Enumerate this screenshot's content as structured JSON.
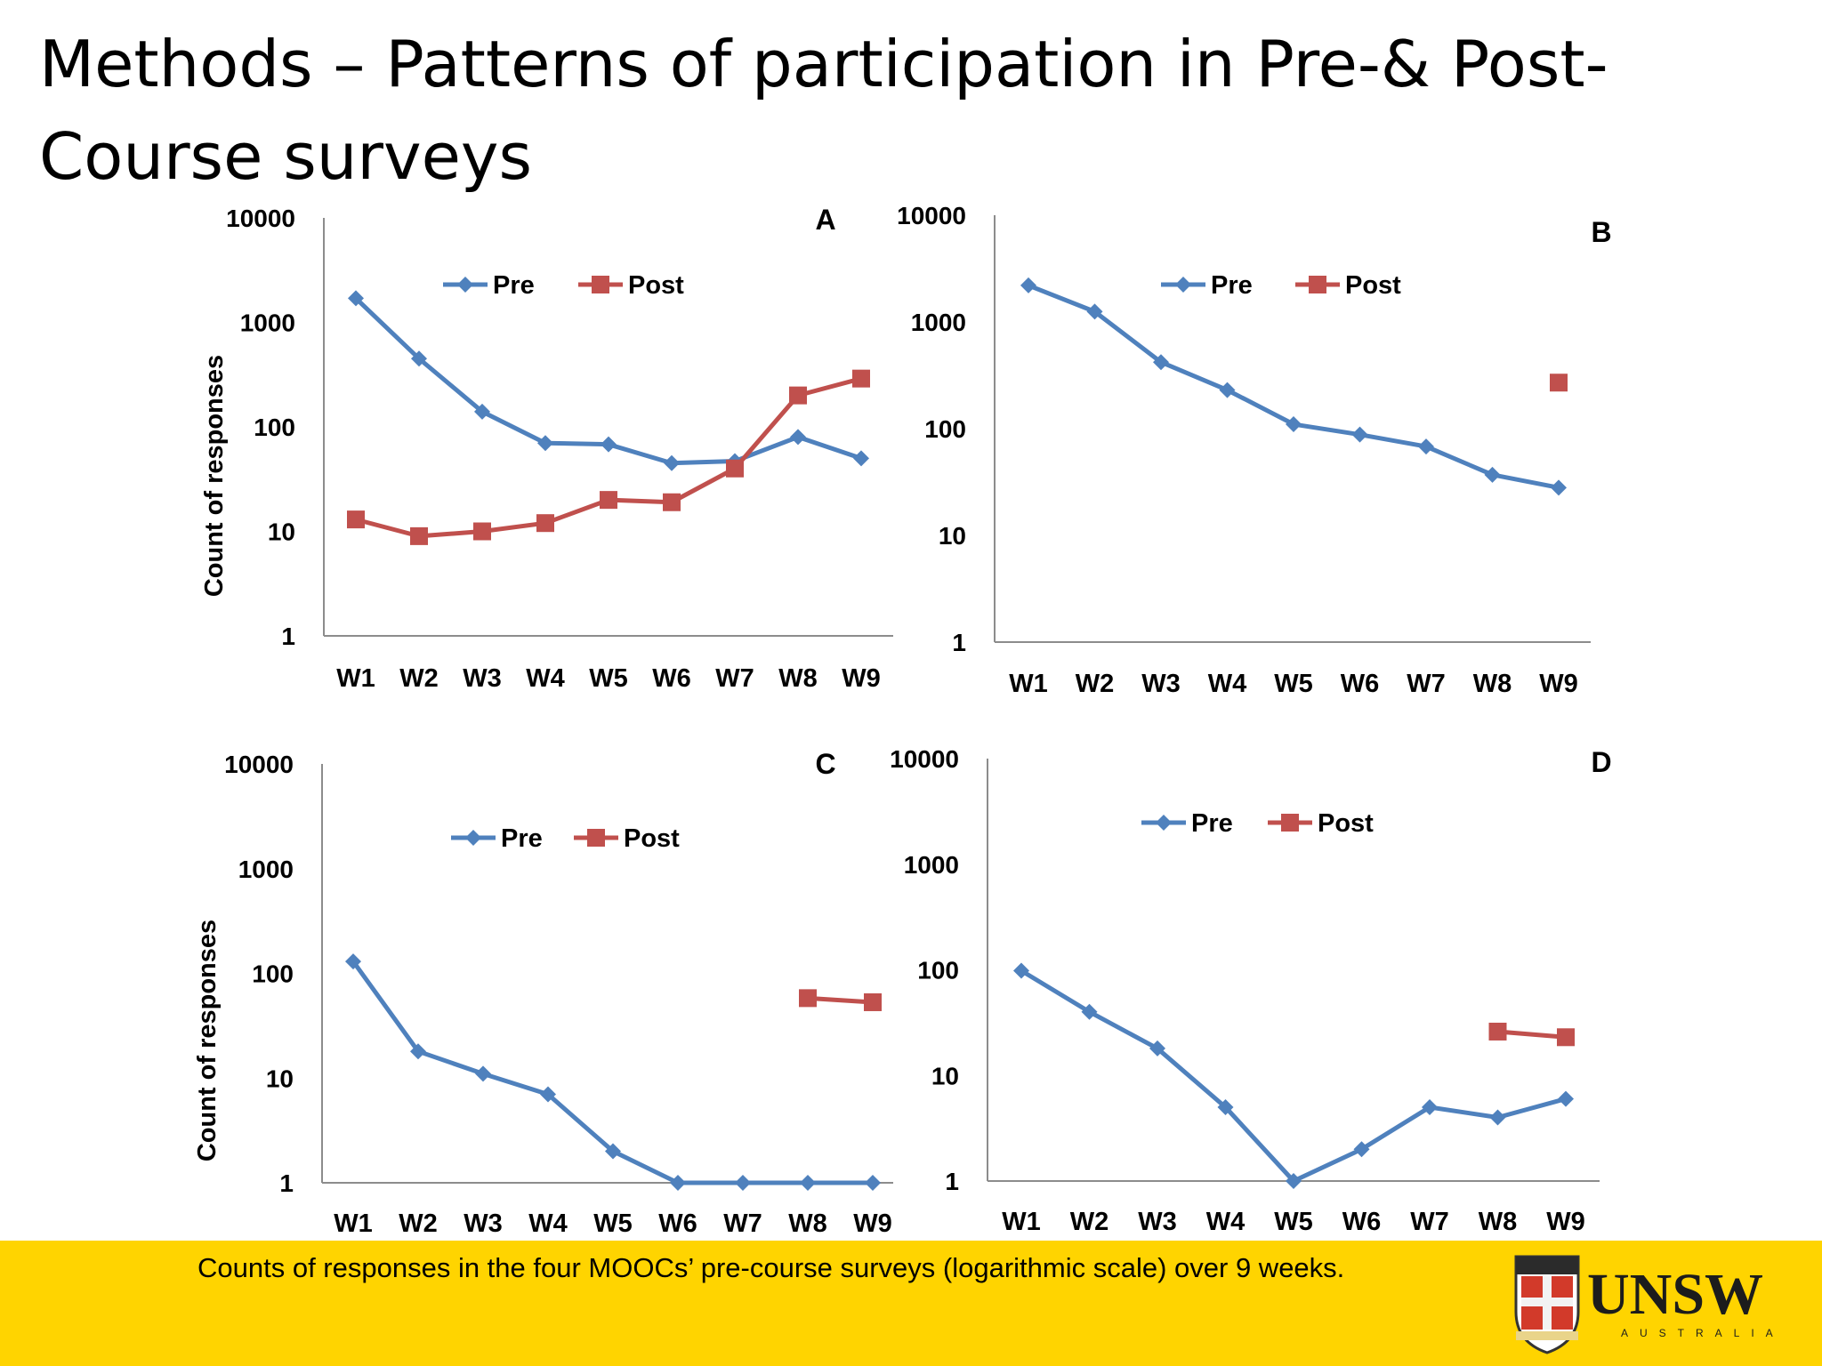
{
  "slide": {
    "title": "Methods – Patterns of participation in Pre-& Post-Course surveys",
    "caption": "Counts of responses in the four MOOCs’ pre-course surveys (logarithmic scale) over 9 weeks.",
    "logo": {
      "text": "UNSW",
      "subtext": "AUSTRALIA"
    }
  },
  "colors": {
    "pre": "#4f81bd",
    "post": "#c0504d",
    "footer": "#ffd400"
  },
  "chart_data": [
    {
      "type": "line",
      "panel": "A",
      "categories": [
        "W1",
        "W2",
        "W3",
        "W4",
        "W5",
        "W6",
        "W7",
        "W8",
        "W9"
      ],
      "ylabel": "Count of responses",
      "yscale": "log",
      "ylim": [
        1,
        10000
      ],
      "yticks": [
        "1",
        "10",
        "100",
        "1000",
        "10000"
      ],
      "legend": "top-center",
      "grid": false,
      "series": [
        {
          "name": "Pre",
          "values": [
            1700,
            450,
            140,
            70,
            68,
            45,
            47,
            80,
            50
          ]
        },
        {
          "name": "Post",
          "values": [
            13,
            9,
            10,
            12,
            20,
            19,
            40,
            200,
            290
          ]
        }
      ]
    },
    {
      "type": "line",
      "panel": "B",
      "categories": [
        "W1",
        "W2",
        "W3",
        "W4",
        "W5",
        "W6",
        "W7",
        "W8",
        "W9"
      ],
      "ylabel": "",
      "yscale": "log",
      "ylim": [
        1,
        10000
      ],
      "yticks": [
        "1",
        "10",
        "100",
        "1000",
        "10000"
      ],
      "legend": "top-center",
      "grid": false,
      "series": [
        {
          "name": "Pre",
          "values": [
            2200,
            1250,
            420,
            230,
            110,
            88,
            68,
            37,
            28
          ]
        },
        {
          "name": "Post",
          "values": [
            null,
            null,
            null,
            null,
            null,
            null,
            null,
            null,
            270
          ]
        }
      ]
    },
    {
      "type": "line",
      "panel": "C",
      "categories": [
        "W1",
        "W2",
        "W3",
        "W4",
        "W5",
        "W6",
        "W7",
        "W8",
        "W9"
      ],
      "ylabel": "Count of responses",
      "yscale": "log",
      "ylim": [
        1,
        10000
      ],
      "yticks": [
        "1",
        "10",
        "100",
        "1000",
        "10000"
      ],
      "legend": "top-center",
      "grid": false,
      "series": [
        {
          "name": "Pre",
          "values": [
            130,
            18,
            11,
            7,
            2,
            1,
            1,
            1,
            1
          ]
        },
        {
          "name": "Post",
          "values": [
            null,
            null,
            null,
            null,
            null,
            null,
            null,
            58,
            53
          ]
        }
      ]
    },
    {
      "type": "line",
      "panel": "D",
      "categories": [
        "W1",
        "W2",
        "W3",
        "W4",
        "W5",
        "W6",
        "W7",
        "W8",
        "W9"
      ],
      "ylabel": "",
      "yscale": "log",
      "ylim": [
        1,
        10000
      ],
      "yticks": [
        "1",
        "10",
        "100",
        "1000",
        "10000"
      ],
      "legend": "top-center",
      "grid": false,
      "series": [
        {
          "name": "Pre",
          "values": [
            98,
            40,
            18,
            5,
            1,
            2,
            5,
            4,
            6
          ]
        },
        {
          "name": "Post",
          "values": [
            null,
            null,
            null,
            null,
            null,
            null,
            null,
            26,
            23
          ]
        }
      ]
    }
  ]
}
